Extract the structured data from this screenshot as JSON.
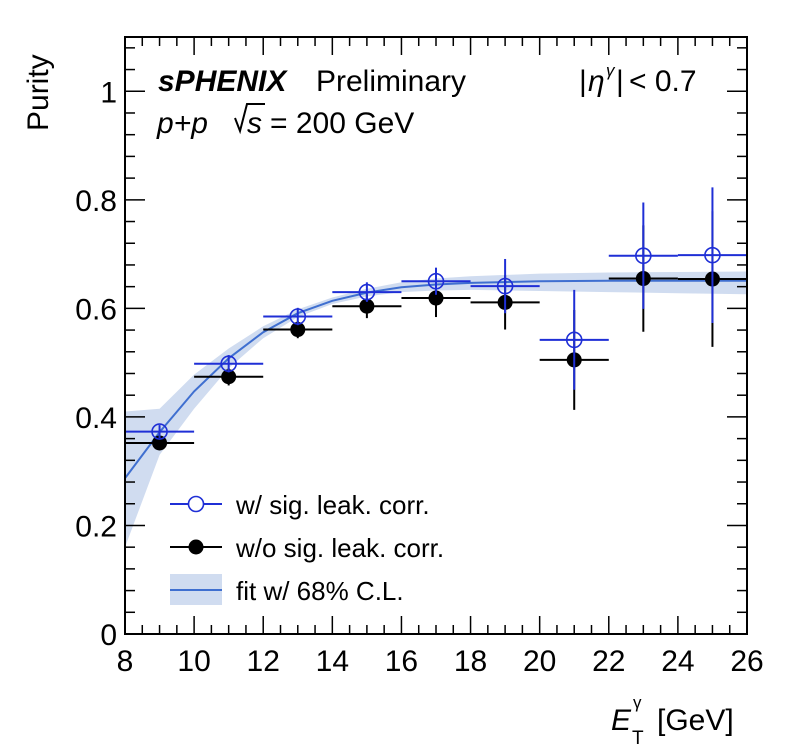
{
  "chart_data": {
    "type": "scatter",
    "xlabel_main": "E",
    "xlabel_sup": "γ",
    "xlabel_sub": "T",
    "xlabel_unit": "[GeV]",
    "ylabel": "Purity",
    "xlim": [
      8,
      26
    ],
    "ylim": [
      0,
      1.1
    ],
    "x_ticks": [
      "8",
      "10",
      "12",
      "14",
      "16",
      "18",
      "20",
      "22",
      "24",
      "26"
    ],
    "y_ticks": [
      "0",
      "0.2",
      "0.4",
      "0.6",
      "0.8",
      "1"
    ],
    "annotations": {
      "experiment": "sPHENIX",
      "status": "Preliminary",
      "collision": "p+p",
      "energy": "= 200 GeV",
      "eta_cut": "< 0.7"
    },
    "series": [
      {
        "name": "w/ sig. leak. corr.",
        "marker": "open-circle",
        "color": "#1f2fd6",
        "x": [
          9,
          11,
          13,
          15,
          17,
          19,
          21,
          23,
          25
        ],
        "xerr": [
          1,
          1,
          1,
          1,
          1,
          1,
          1,
          1,
          1
        ],
        "y": [
          0.373,
          0.498,
          0.585,
          0.63,
          0.65,
          0.641,
          0.542,
          0.697,
          0.698
        ],
        "yerr": [
          0.012,
          0.016,
          0.016,
          0.018,
          0.025,
          0.05,
          0.092,
          0.098,
          0.125
        ]
      },
      {
        "name": "w/o sig. leak. corr.",
        "marker": "filled-circle",
        "color": "#000000",
        "x": [
          9,
          11,
          13,
          15,
          17,
          19,
          21,
          23,
          25
        ],
        "xerr": [
          1,
          1,
          1,
          1,
          1,
          1,
          1,
          1,
          1
        ],
        "y": [
          0.352,
          0.474,
          0.561,
          0.604,
          0.619,
          0.611,
          0.505,
          0.655,
          0.654
        ],
        "yerr": [
          0.012,
          0.016,
          0.016,
          0.022,
          0.035,
          0.05,
          0.092,
          0.098,
          0.125
        ]
      }
    ],
    "fit": {
      "name": "fit w/ 68% C.L.",
      "line_color": "#3f6fd0",
      "band_color": "#d0dcf0",
      "x": [
        8,
        9,
        10,
        11,
        12,
        13,
        14,
        15,
        16,
        17,
        18,
        20,
        22,
        24,
        26
      ],
      "y": [
        0.287,
        0.372,
        0.447,
        0.508,
        0.556,
        0.591,
        0.614,
        0.629,
        0.639,
        0.644,
        0.647,
        0.65,
        0.651,
        0.651,
        0.651
      ],
      "band_lo": [
        0.16,
        0.33,
        0.415,
        0.49,
        0.545,
        0.584,
        0.608,
        0.622,
        0.63,
        0.633,
        0.634,
        0.632,
        0.63,
        0.628,
        0.626
      ],
      "band_hi": [
        0.41,
        0.415,
        0.478,
        0.526,
        0.567,
        0.598,
        0.62,
        0.636,
        0.648,
        0.655,
        0.659,
        0.664,
        0.666,
        0.667,
        0.668
      ]
    }
  }
}
